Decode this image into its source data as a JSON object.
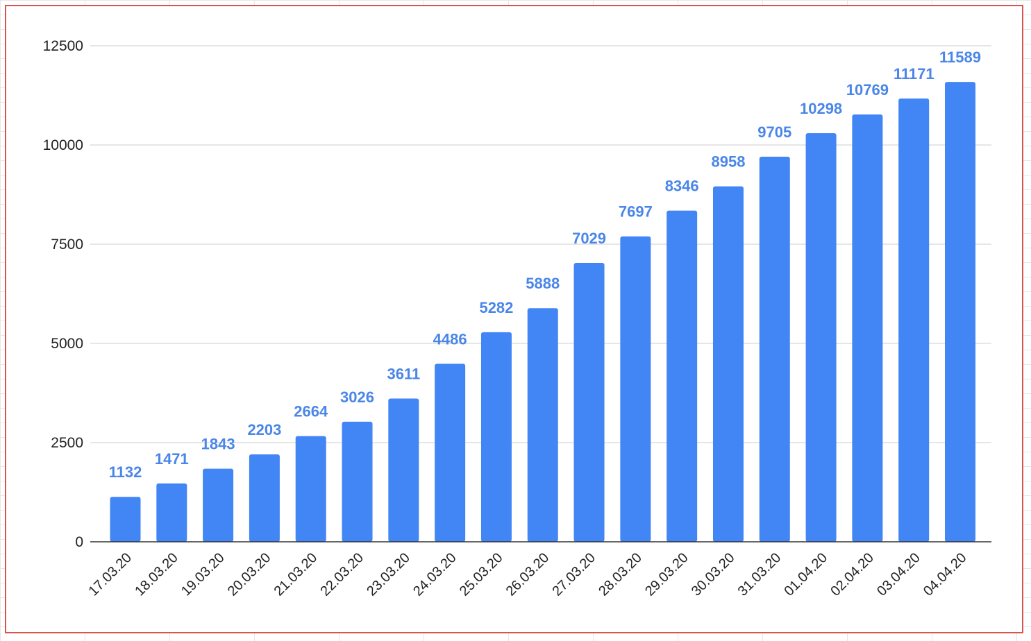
{
  "chart_data": {
    "type": "bar",
    "title": "",
    "xlabel": "",
    "ylabel": "",
    "categories": [
      "17.03.20",
      "18.03.20",
      "19.03.20",
      "20.03.20",
      "21.03.20",
      "22.03.20",
      "23.03.20",
      "24.03.20",
      "25.03.20",
      "26.03.20",
      "27.03.20",
      "28.03.20",
      "29.03.20",
      "30.03.20",
      "31.03.20",
      "01.04.20",
      "02.04.20",
      "03.04.20",
      "04.04.20"
    ],
    "series": [
      {
        "values": [
          1132,
          1471,
          1843,
          2203,
          2664,
          3026,
          3611,
          4486,
          5282,
          5888,
          7029,
          7697,
          8346,
          8958,
          9705,
          10298,
          10769,
          11171,
          11589
        ]
      }
    ],
    "ylim": [
      0,
      12500
    ],
    "yticks": [
      0,
      2500,
      5000,
      7500,
      10000,
      12500
    ],
    "grid": true,
    "legend": "none",
    "data_labels": true,
    "colors": {
      "bar": "#4285f4",
      "data_label": "#4a86e8",
      "gridline": "#cccccc",
      "axis": "#333333",
      "frame_border": "#d9534f"
    }
  }
}
